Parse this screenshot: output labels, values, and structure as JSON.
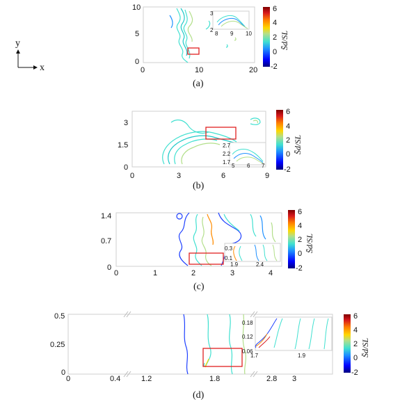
{
  "axes_indicator": {
    "y": "y",
    "x": "x"
  },
  "colorbar": {
    "label": "S̄d/SL",
    "ticks": [
      "6",
      "4",
      "2",
      "0",
      "-2"
    ],
    "colors": [
      "#7f0000",
      "#d7191c",
      "#ff7f00",
      "#ffd700",
      "#b2df8a",
      "#40e0d0",
      "#1e90ff",
      "#0000cd",
      "#00007f"
    ]
  },
  "panels": [
    {
      "caption": "(a)",
      "y_ticks": [
        "10",
        "5",
        "0"
      ],
      "x_ticks": [
        "0",
        "10",
        "20"
      ],
      "inset": {
        "x_ticks": [
          "8",
          "9",
          "10"
        ],
        "y_ticks": [
          "3",
          "2"
        ]
      }
    },
    {
      "caption": "(b)",
      "y_ticks": [
        "3",
        "1.5",
        "0"
      ],
      "x_ticks": [
        "0",
        "3",
        "6",
        "9"
      ],
      "inset": {
        "x_ticks": [
          "5",
          "6",
          "7"
        ],
        "y_ticks": [
          "2.7",
          "2.2",
          "1.7"
        ]
      }
    },
    {
      "caption": "(c)",
      "y_ticks": [
        "1.4",
        "0.7",
        "0"
      ],
      "x_ticks": [
        "0",
        "1",
        "2",
        "3",
        "4"
      ],
      "inset": {
        "x_ticks": [
          "1.9",
          "2.4"
        ],
        "y_ticks": [
          "0.3",
          "0.1"
        ]
      }
    },
    {
      "caption": "(d)",
      "y_ticks": [
        "0.5",
        "0.25",
        "0"
      ],
      "x_ticks": [
        "0",
        "0.4",
        "1.2",
        "1.8",
        "2.8",
        "3"
      ],
      "inset": {
        "x_ticks": [
          "1.7",
          "1.9"
        ],
        "y_ticks": [
          "0.18",
          "0.12",
          "0.06"
        ]
      }
    }
  ]
}
